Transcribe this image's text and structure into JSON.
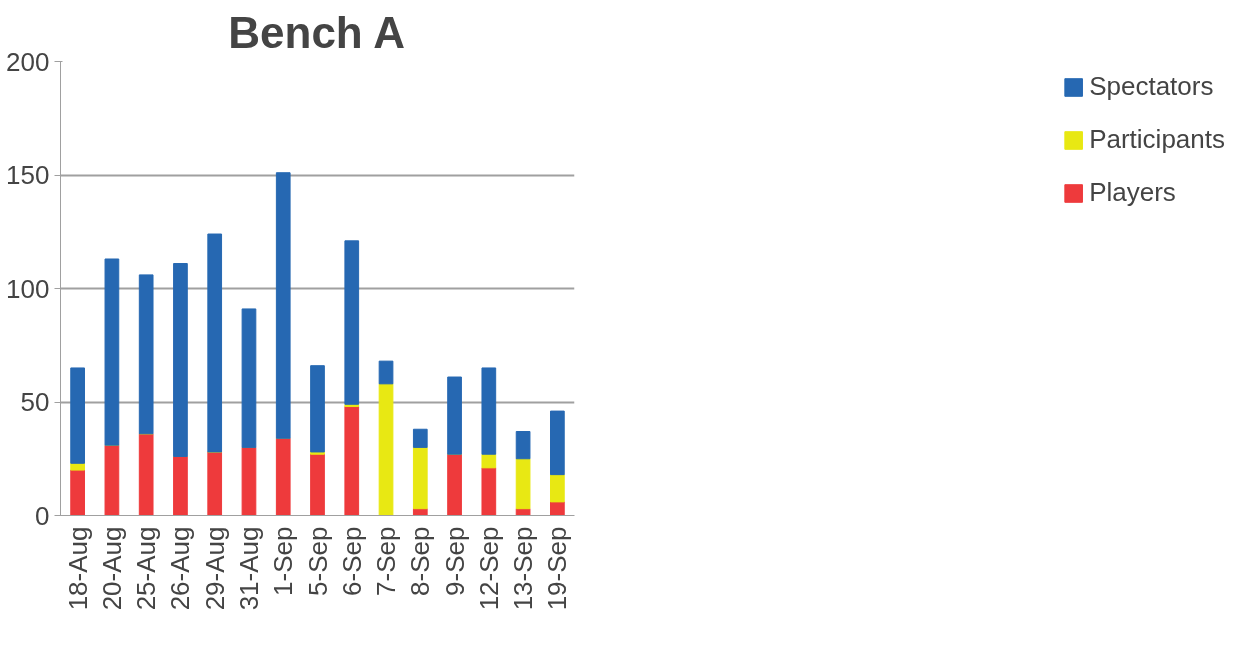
{
  "chart_data": {
    "type": "bar",
    "title": "Bench A",
    "stacked": true,
    "categories": [
      "18-Aug",
      "20-Aug",
      "25-Aug",
      "26-Aug",
      "29-Aug",
      "31-Aug",
      "1-Sep",
      "5-Sep",
      "6-Sep",
      "7-Sep",
      "8-Sep",
      "9-Sep",
      "12-Sep",
      "13-Sep",
      "19-Sep"
    ],
    "series": [
      {
        "name": "Players",
        "color": "#ee3a3c",
        "values": [
          20,
          31,
          36,
          26,
          28,
          30,
          34,
          27,
          48,
          0,
          3,
          27,
          21,
          3,
          6
        ]
      },
      {
        "name": "Participants",
        "color": "#e8e813",
        "values": [
          3,
          0,
          0,
          0,
          0,
          0,
          0,
          1,
          1,
          58,
          27,
          0,
          6,
          22,
          12
        ]
      },
      {
        "name": "Spectators",
        "color": "#2668b2",
        "values": [
          42,
          82,
          70,
          85,
          96,
          61,
          117,
          38,
          72,
          10,
          8,
          34,
          38,
          12,
          28
        ]
      }
    ],
    "ylim": [
      0,
      200
    ],
    "yticks": [
      0,
      50,
      100,
      150,
      200
    ],
    "grid": "y",
    "legend": "right"
  }
}
